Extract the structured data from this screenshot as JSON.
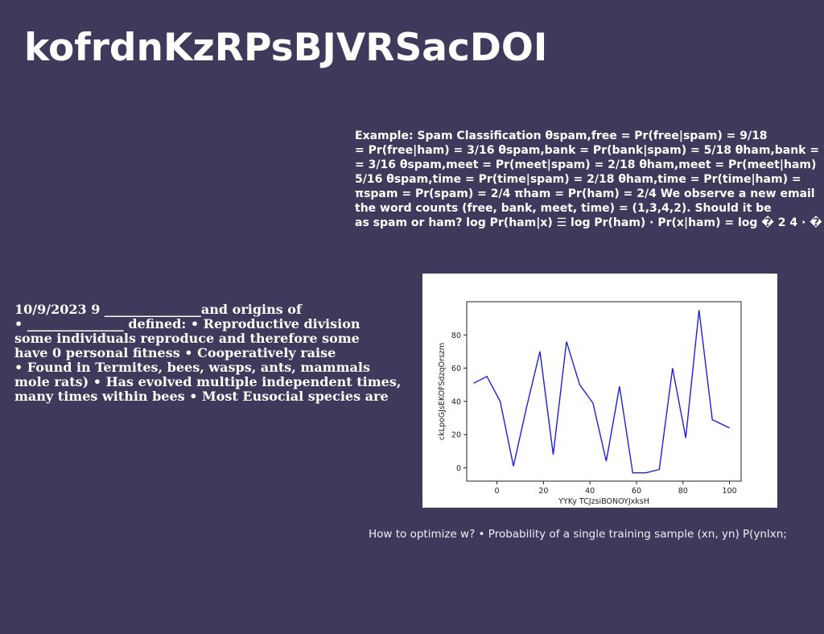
{
  "page": {
    "background_color": "#3f3a5b",
    "title": "kofrdnKzRPsBJVRSacDOI"
  },
  "spam_example": {
    "lines": [
      "Example: Spam Classification θspam,free = Pr(free|spam) = 9/18",
      "= Pr(free|ham) = 3/16 θspam,bank = Pr(bank|spam) = 5/18 θham,bank =",
      "= 3/16 θspam,meet = Pr(meet|spam) = 2/18 θham,meet = Pr(meet|ham)",
      "5/16 θspam,time = Pr(time|spam) = 2/18 θham,time = Pr(time|ham) =",
      "πspam = Pr(spam) = 2/4 πham = Pr(ham) = 2/4 We observe a new email",
      "the word counts (free, bank, meet, time) = (1,3,4,2). Should it be",
      "as spam or ham? log Pr(ham|x) ☰ log Pr(ham) · Pr(x|ham) = log � 2 4 · �"
    ]
  },
  "biology_text": {
    "lines": [
      "10/9/2023 9 _______________and origins of",
      "• _______________ defined: • Reproductive division",
      "some individuals reproduce and therefore some",
      "have 0 personal fitness • Cooperatively raise",
      "• Found in Termites, bees, wasps, ants, mammals",
      "mole rats) • Has evolved multiple independent times,",
      "many times within bees • Most Eusocial species are"
    ]
  },
  "caption": "How to optimize w? • Probability of a single training sample (xn, yn) P(ynlxn;",
  "chart_data": {
    "type": "line",
    "title": "",
    "xlabel": "YYKy TCJzsiBONOYJxksH",
    "ylabel": "ckLpoGJsEKOFSdzqOrszm",
    "xlim": [
      -13,
      105
    ],
    "ylim": [
      -8,
      100
    ],
    "xticks": [
      0,
      20,
      40,
      60,
      80,
      100
    ],
    "yticks": [
      0,
      20,
      40,
      60,
      80
    ],
    "grid": false,
    "line_color": "#1f1fd6",
    "series": [
      {
        "x": [
          -10,
          -4.3,
          1.4,
          7.1,
          12.8,
          18.5,
          24.2,
          29.9,
          35.6,
          41.3,
          47.0,
          52.7,
          58.4,
          64.1,
          69.8,
          75.5,
          81.2,
          86.9,
          92.6,
          100
        ],
        "values": [
          51,
          55,
          40,
          1,
          37,
          70,
          8,
          76,
          50,
          39,
          4,
          49,
          -3,
          -3,
          -1,
          60,
          18,
          95,
          29,
          24
        ]
      }
    ]
  }
}
